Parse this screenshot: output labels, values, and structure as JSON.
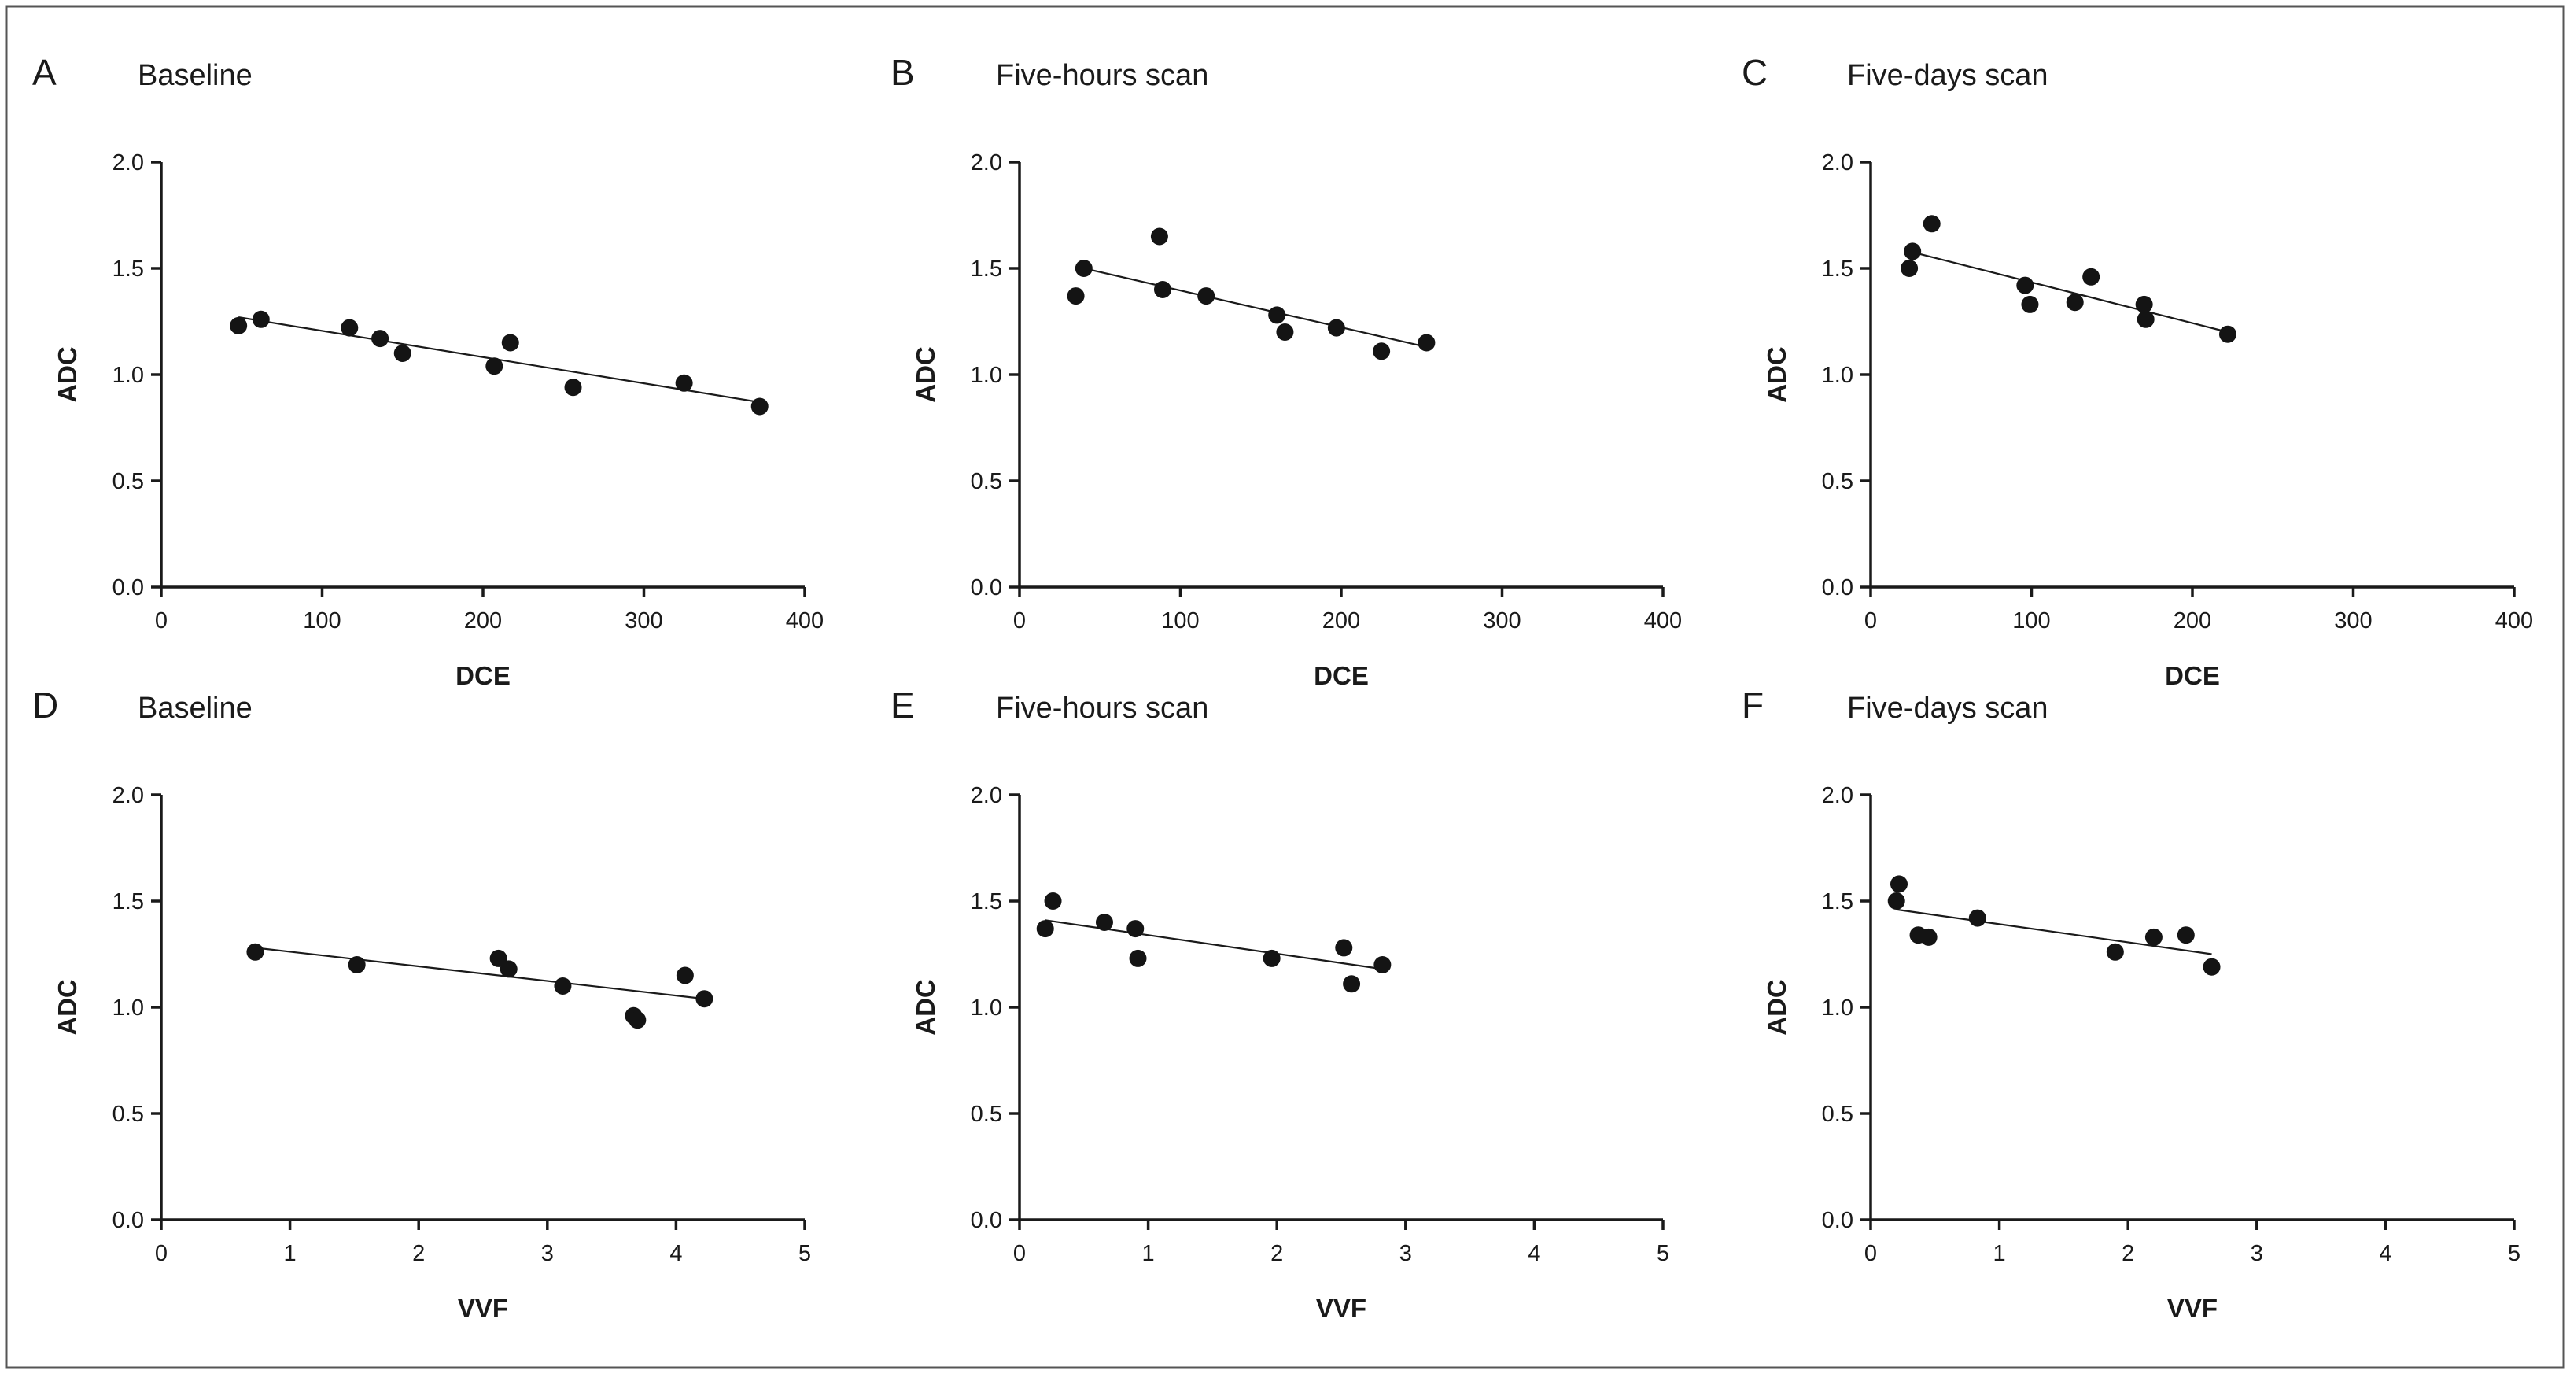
{
  "chart_data": [
    {
      "type": "scatter",
      "panel_label": "A",
      "title": "Baseline",
      "xlabel": "DCE",
      "ylabel": "ADC",
      "xlim": [
        0,
        400
      ],
      "ylim": [
        0,
        2.0
      ],
      "xticks": [
        "0",
        "100",
        "200",
        "300",
        "400"
      ],
      "yticks": [
        "0.0",
        "0.5",
        "1.0",
        "1.5",
        "2.0"
      ],
      "points": [
        [
          48,
          1.23
        ],
        [
          62,
          1.26
        ],
        [
          117,
          1.22
        ],
        [
          136,
          1.17
        ],
        [
          150,
          1.1
        ],
        [
          207,
          1.04
        ],
        [
          217,
          1.15
        ],
        [
          256,
          0.94
        ],
        [
          325,
          0.96
        ],
        [
          372,
          0.85
        ]
      ],
      "fit_line": [
        [
          48,
          1.27
        ],
        [
          372,
          0.87
        ]
      ]
    },
    {
      "type": "scatter",
      "panel_label": "B",
      "title": "Five-hours scan",
      "xlabel": "DCE",
      "ylabel": "ADC",
      "xlim": [
        0,
        400
      ],
      "ylim": [
        0,
        2.0
      ],
      "xticks": [
        "0",
        "100",
        "200",
        "300",
        "400"
      ],
      "yticks": [
        "0.0",
        "0.5",
        "1.0",
        "1.5",
        "2.0"
      ],
      "points": [
        [
          35,
          1.37
        ],
        [
          40,
          1.5
        ],
        [
          87,
          1.65
        ],
        [
          89,
          1.4
        ],
        [
          116,
          1.37
        ],
        [
          160,
          1.28
        ],
        [
          165,
          1.2
        ],
        [
          197,
          1.22
        ],
        [
          225,
          1.11
        ],
        [
          253,
          1.15
        ]
      ],
      "fit_line": [
        [
          40,
          1.5
        ],
        [
          253,
          1.13
        ]
      ]
    },
    {
      "type": "scatter",
      "panel_label": "C",
      "title": "Five-days scan",
      "xlabel": "DCE",
      "ylabel": "ADC",
      "xlim": [
        0,
        400
      ],
      "ylim": [
        0,
        2.0
      ],
      "xticks": [
        "0",
        "100",
        "200",
        "300",
        "400"
      ],
      "yticks": [
        "0.0",
        "0.5",
        "1.0",
        "1.5",
        "2.0"
      ],
      "points": [
        [
          24,
          1.5
        ],
        [
          26,
          1.58
        ],
        [
          38,
          1.71
        ],
        [
          96,
          1.42
        ],
        [
          99,
          1.33
        ],
        [
          127,
          1.34
        ],
        [
          137,
          1.46
        ],
        [
          170,
          1.33
        ],
        [
          171,
          1.26
        ],
        [
          222,
          1.19
        ]
      ],
      "fit_line": [
        [
          24,
          1.58
        ],
        [
          222,
          1.2
        ]
      ]
    },
    {
      "type": "scatter",
      "panel_label": "D",
      "title": "Baseline",
      "xlabel": "VVF",
      "ylabel": "ADC",
      "xlim": [
        0,
        5
      ],
      "ylim": [
        0,
        2.0
      ],
      "xticks": [
        "0",
        "1",
        "2",
        "3",
        "4",
        "5"
      ],
      "yticks": [
        "0.0",
        "0.5",
        "1.0",
        "1.5",
        "2.0"
      ],
      "points": [
        [
          0.73,
          1.26
        ],
        [
          1.52,
          1.2
        ],
        [
          2.62,
          1.23
        ],
        [
          2.7,
          1.18
        ],
        [
          3.12,
          1.1
        ],
        [
          3.67,
          0.96
        ],
        [
          3.7,
          0.94
        ],
        [
          4.07,
          1.15
        ],
        [
          4.22,
          1.04
        ]
      ],
      "fit_line": [
        [
          0.73,
          1.28
        ],
        [
          4.22,
          1.04
        ]
      ]
    },
    {
      "type": "scatter",
      "panel_label": "E",
      "title": "Five-hours scan",
      "xlabel": "VVF",
      "ylabel": "ADC",
      "xlim": [
        0,
        5
      ],
      "ylim": [
        0,
        2.0
      ],
      "xticks": [
        "0",
        "1",
        "2",
        "3",
        "4",
        "5"
      ],
      "yticks": [
        "0.0",
        "0.5",
        "1.0",
        "1.5",
        "2.0"
      ],
      "points": [
        [
          0.2,
          1.37
        ],
        [
          0.26,
          1.5
        ],
        [
          0.66,
          1.4
        ],
        [
          0.9,
          1.37
        ],
        [
          0.92,
          1.23
        ],
        [
          1.96,
          1.23
        ],
        [
          2.52,
          1.28
        ],
        [
          2.58,
          1.11
        ],
        [
          2.82,
          1.2
        ]
      ],
      "fit_line": [
        [
          0.2,
          1.41
        ],
        [
          2.82,
          1.18
        ]
      ]
    },
    {
      "type": "scatter",
      "panel_label": "F",
      "title": "Five-days scan",
      "xlabel": "VVF",
      "ylabel": "ADC",
      "xlim": [
        0,
        5
      ],
      "ylim": [
        0,
        2.0
      ],
      "xticks": [
        "0",
        "1",
        "2",
        "3",
        "4",
        "5"
      ],
      "yticks": [
        "0.0",
        "0.5",
        "1.0",
        "1.5",
        "2.0"
      ],
      "points": [
        [
          0.2,
          1.5
        ],
        [
          0.22,
          1.58
        ],
        [
          0.37,
          1.34
        ],
        [
          0.45,
          1.33
        ],
        [
          0.83,
          1.42
        ],
        [
          1.9,
          1.26
        ],
        [
          2.2,
          1.33
        ],
        [
          2.45,
          1.34
        ],
        [
          2.65,
          1.19
        ]
      ],
      "fit_line": [
        [
          0.2,
          1.46
        ],
        [
          2.65,
          1.25
        ]
      ]
    }
  ]
}
